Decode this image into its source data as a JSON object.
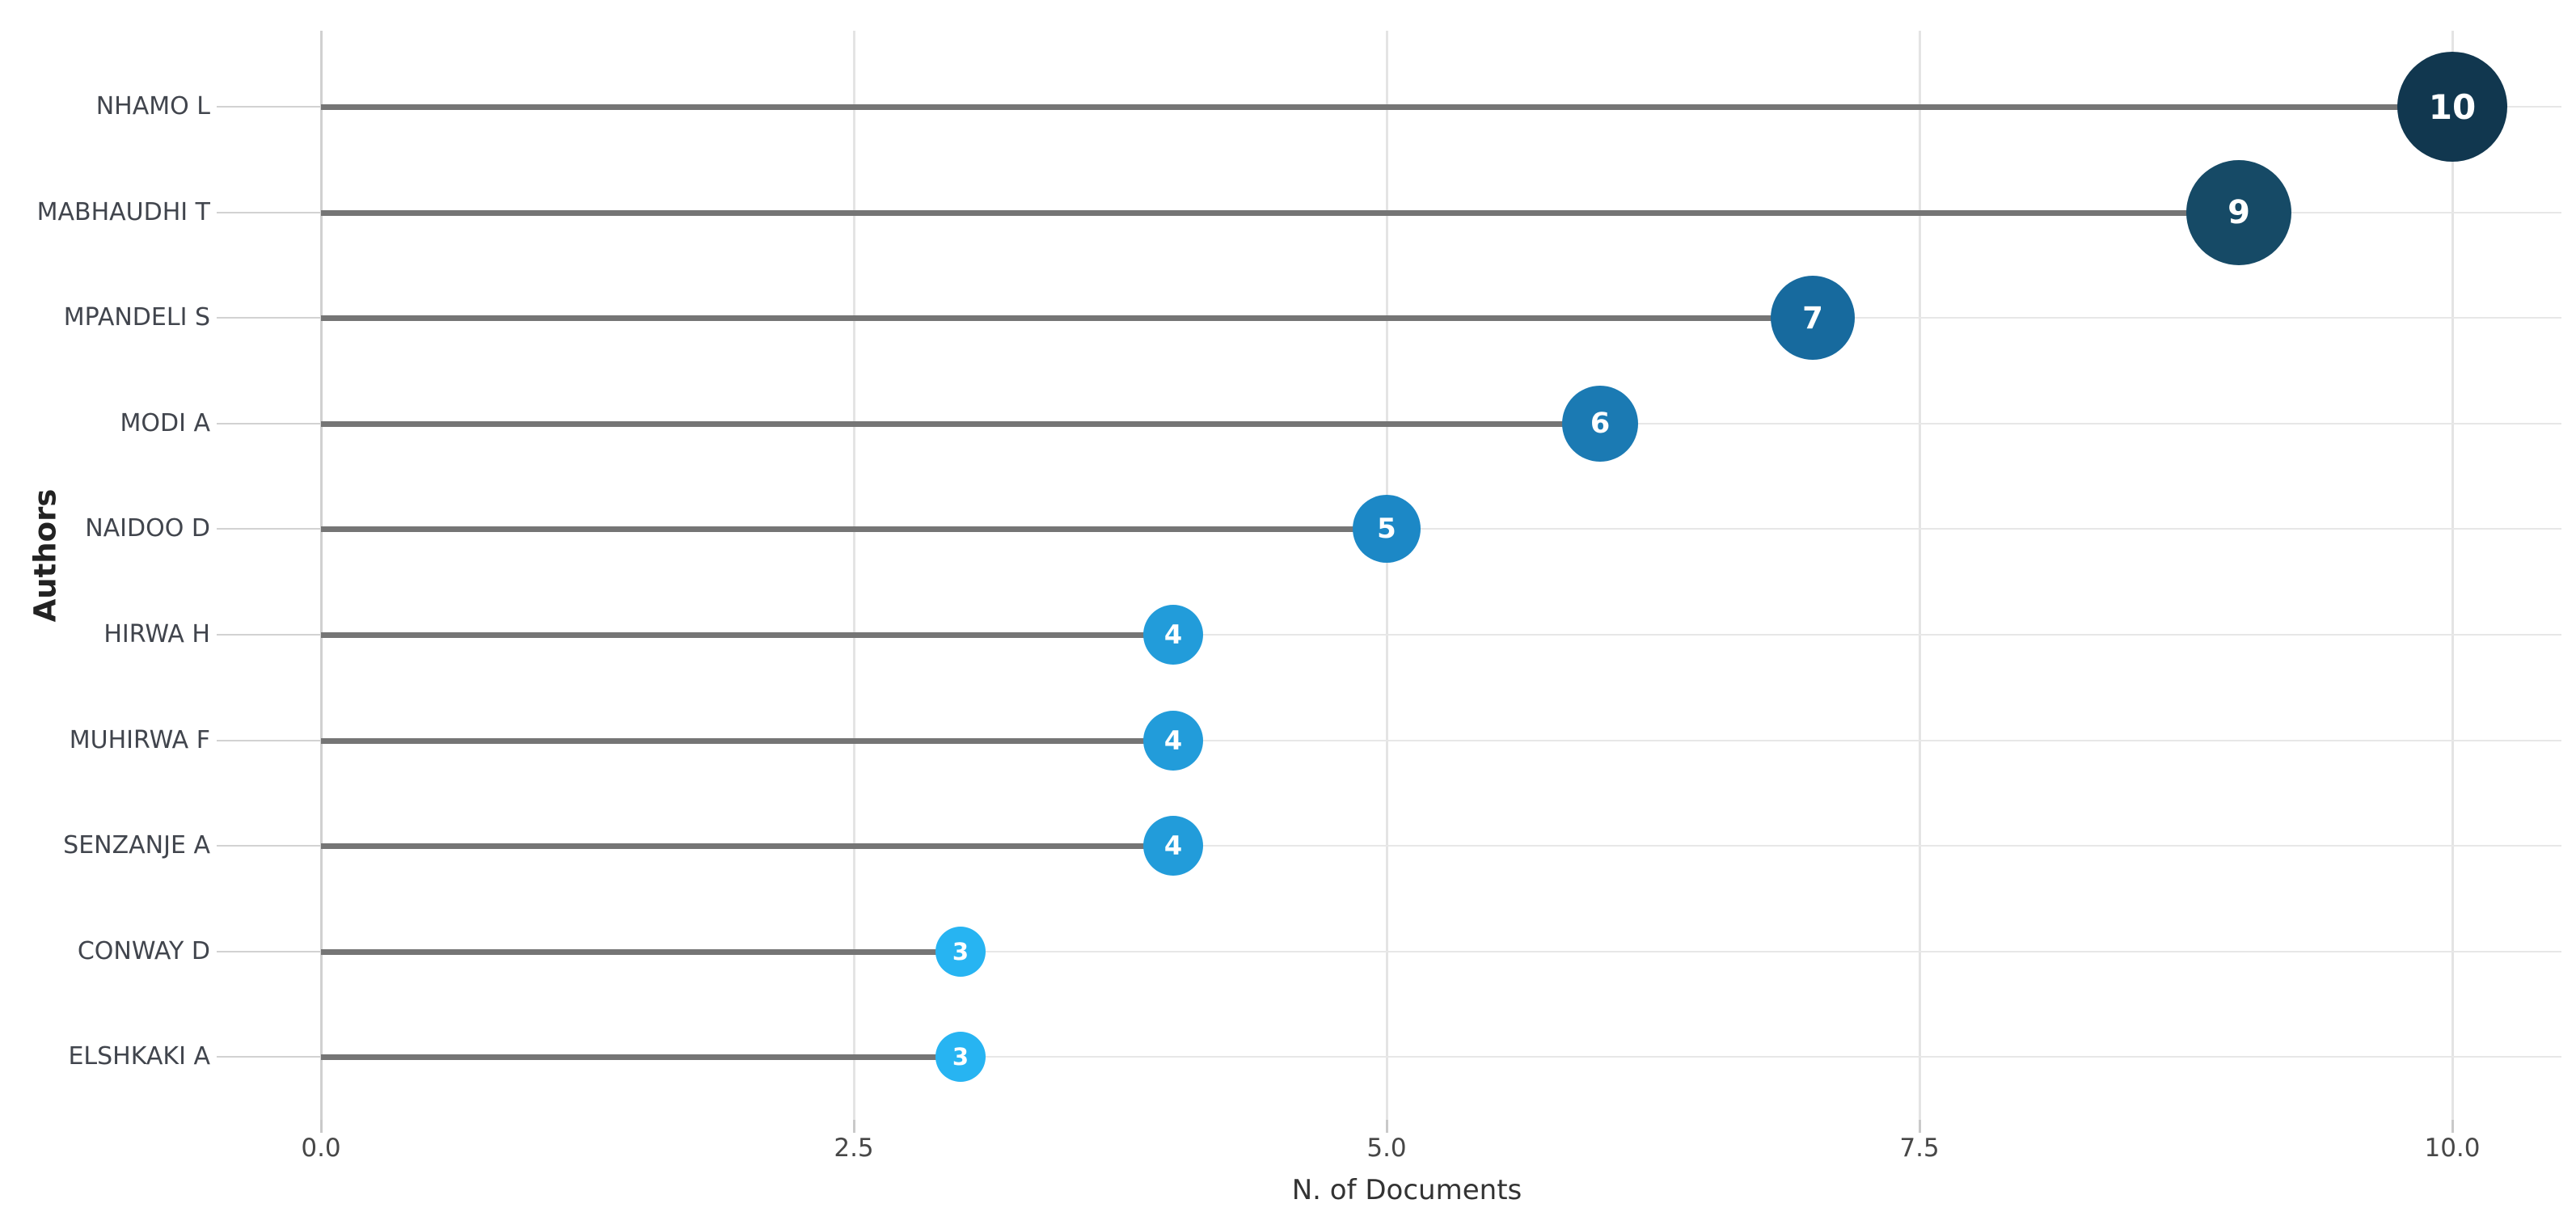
{
  "chart_data": {
    "type": "lollipop",
    "title": "",
    "xlabel": "N. of Documents",
    "ylabel": "Authors",
    "categories": [
      "NHAMO L",
      "MABHAUDHI T",
      "MPANDELI S",
      "MODI A",
      "NAIDOO D",
      "HIRWA H",
      "MUHIRWA F",
      "SENZANJE A",
      "CONWAY D",
      "ELSHKAKI A"
    ],
    "values": [
      10,
      9,
      7,
      6,
      5,
      4,
      4,
      4,
      3,
      3
    ],
    "x_ticks": [
      0,
      2.5,
      5,
      7.5,
      10
    ],
    "x_tick_labels": [
      "0.0",
      "2.5",
      "5.0",
      "7.5",
      "10.0"
    ],
    "xlim": [
      0,
      10
    ],
    "grid": true,
    "legend": "none",
    "marker_colors": {
      "10": "#11374f",
      "9": "#164a66",
      "7": "#176a9e",
      "6": "#1b7ab3",
      "5": "#1c88c6",
      "4": "#229cda",
      "3": "#27b4f2"
    },
    "marker_radii": {
      "10": 68,
      "9": 65,
      "7": 52,
      "6": 47,
      "5": 42,
      "4": 37,
      "3": 31
    },
    "marker_font_sizes": {
      "10": 42,
      "9": 40,
      "7": 37,
      "6": 35,
      "5": 34,
      "4": 32,
      "3": 29
    }
  },
  "colors": {
    "background": "#ffffff",
    "stem": "#757575",
    "row_gridline": "#e7e7e7",
    "label_leader": "#d2d2d2",
    "zero_gridline": "#d0d0d0",
    "vertical_gridline": "#e4e4e4",
    "marker_text": "#ffffff"
  }
}
